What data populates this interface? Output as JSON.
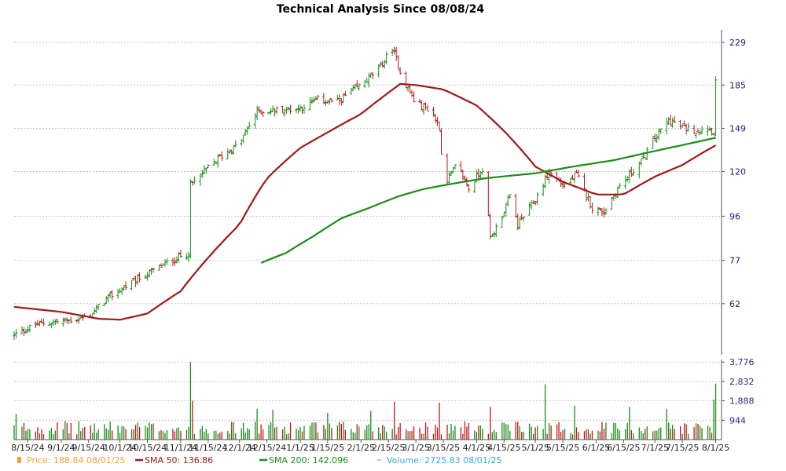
{
  "chart_data": {
    "type": "line",
    "title": "Technical Analysis Since 08/08/24",
    "price_axis": {
      "scale": "log",
      "range": [
        48,
        240
      ],
      "ticks": [
        229,
        185,
        149,
        120,
        96,
        77,
        62
      ],
      "tick_labels": [
        "229",
        "185",
        "149",
        "120",
        "96",
        "77",
        "62"
      ]
    },
    "volume_axis": {
      "range": [
        0,
        3900
      ],
      "ticks": [
        3776,
        2832,
        1888,
        944
      ],
      "tick_labels": [
        "3,776",
        "2,832",
        "1,888",
        "944"
      ]
    },
    "x_axis": {
      "start": "2024-08-08",
      "end": "2025-08-04",
      "tick_dates": [
        "2024-08-15",
        "2024-09-01",
        "2024-09-15",
        "2024-10-01",
        "2024-10-15",
        "2024-11-01",
        "2024-11-15",
        "2024-12-01",
        "2024-12-15",
        "2025-01-01",
        "2025-01-15",
        "2025-02-01",
        "2025-02-15",
        "2025-03-01",
        "2025-03-15",
        "2025-04-01",
        "2025-04-15",
        "2025-05-01",
        "2025-05-15",
        "2025-06-01",
        "2025-06-15",
        "2025-07-01",
        "2025-07-15",
        "2025-08-01"
      ],
      "tick_labels": [
        "8/15/24",
        "9/1/24",
        "9/15/24",
        "10/1/24",
        "10/15/24",
        "11/1/24",
        "11/15/24",
        "12/1/24",
        "12/15/24",
        "1/1/25",
        "1/15/25",
        "2/1/25",
        "2/15/25",
        "3/1/25",
        "3/15/25",
        "4/1/25",
        "4/15/25",
        "5/1/25",
        "5/15/25",
        "6/1/25",
        "6/15/25",
        "7/1/25",
        "7/15/25",
        "8/1/25"
      ]
    },
    "grid": true,
    "price_anchors": [
      [
        "2024-08-08",
        53
      ],
      [
        "2024-08-20",
        56
      ],
      [
        "2024-09-05",
        57
      ],
      [
        "2024-09-15",
        58
      ],
      [
        "2024-09-25",
        64
      ],
      [
        "2024-10-10",
        70
      ],
      [
        "2024-10-25",
        76
      ],
      [
        "2024-11-05",
        80
      ],
      [
        "2024-11-06",
        112
      ],
      [
        "2024-11-20",
        128
      ],
      [
        "2024-12-01",
        138
      ],
      [
        "2024-12-10",
        162
      ],
      [
        "2024-12-20",
        163
      ],
      [
        "2025-01-01",
        165
      ],
      [
        "2025-01-10",
        172
      ],
      [
        "2025-01-20",
        170
      ],
      [
        "2025-02-01",
        185
      ],
      [
        "2025-02-10",
        200
      ],
      [
        "2025-02-17",
        222
      ],
      [
        "2025-02-22",
        192
      ],
      [
        "2025-03-01",
        168
      ],
      [
        "2025-03-08",
        164
      ],
      [
        "2025-03-13",
        150
      ],
      [
        "2025-03-15",
        112
      ],
      [
        "2025-03-22",
        124
      ],
      [
        "2025-03-28",
        110
      ],
      [
        "2025-04-04",
        122
      ],
      [
        "2025-04-08",
        86
      ],
      [
        "2025-04-12",
        92
      ],
      [
        "2025-04-18",
        106
      ],
      [
        "2025-04-22",
        92
      ],
      [
        "2025-05-01",
        104
      ],
      [
        "2025-05-08",
        120
      ],
      [
        "2025-05-15",
        112
      ],
      [
        "2025-05-22",
        118
      ],
      [
        "2025-05-30",
        100
      ],
      [
        "2025-06-05",
        98
      ],
      [
        "2025-06-12",
        110
      ],
      [
        "2025-06-18",
        118
      ],
      [
        "2025-06-25",
        128
      ],
      [
        "2025-07-01",
        142
      ],
      [
        "2025-07-08",
        155
      ],
      [
        "2025-07-15",
        150
      ],
      [
        "2025-07-22",
        147
      ],
      [
        "2025-07-28",
        150
      ],
      [
        "2025-07-31",
        146
      ],
      [
        "2025-08-01",
        188.84
      ]
    ],
    "sma50_anchors": [
      [
        "2024-08-08",
        61
      ],
      [
        "2024-09-01",
        59.5
      ],
      [
        "2024-09-20",
        57.5
      ],
      [
        "2024-10-01",
        57.2
      ],
      [
        "2024-10-15",
        59
      ],
      [
        "2024-11-01",
        66
      ],
      [
        "2024-11-15",
        78
      ],
      [
        "2024-12-01",
        92
      ],
      [
        "2024-12-15",
        116
      ],
      [
        "2025-01-01",
        135
      ],
      [
        "2025-01-15",
        146
      ],
      [
        "2025-02-01",
        160
      ],
      [
        "2025-02-15",
        178
      ],
      [
        "2025-02-21",
        186
      ],
      [
        "2025-03-01",
        185
      ],
      [
        "2025-03-15",
        181
      ],
      [
        "2025-04-01",
        167
      ],
      [
        "2025-04-15",
        147
      ],
      [
        "2025-05-01",
        123
      ],
      [
        "2025-05-15",
        114
      ],
      [
        "2025-06-01",
        107
      ],
      [
        "2025-06-15",
        107
      ],
      [
        "2025-07-01",
        117
      ],
      [
        "2025-07-15",
        124
      ],
      [
        "2025-08-01",
        136.86
      ]
    ],
    "sma200_anchors": [
      [
        "2024-12-12",
        76
      ],
      [
        "2024-12-25",
        80
      ],
      [
        "2025-01-08",
        87
      ],
      [
        "2025-01-22",
        95
      ],
      [
        "2025-02-05",
        100
      ],
      [
        "2025-02-20",
        106
      ],
      [
        "2025-03-05",
        110
      ],
      [
        "2025-03-20",
        113
      ],
      [
        "2025-04-05",
        116
      ],
      [
        "2025-05-01",
        119
      ],
      [
        "2025-05-20",
        123
      ],
      [
        "2025-06-10",
        127
      ],
      [
        "2025-07-01",
        133
      ],
      [
        "2025-07-15",
        137
      ],
      [
        "2025-08-01",
        142.096
      ]
    ],
    "volume_spikes": [
      [
        "2024-08-09",
        1250
      ],
      [
        "2024-11-06",
        3776
      ],
      [
        "2024-11-07",
        1900
      ],
      [
        "2024-12-10",
        1500
      ],
      [
        "2024-12-18",
        1450
      ],
      [
        "2025-01-15",
        1300
      ],
      [
        "2025-02-06",
        1400
      ],
      [
        "2025-02-18",
        1850
      ],
      [
        "2025-03-13",
        1800
      ],
      [
        "2025-03-15",
        1650
      ],
      [
        "2025-04-08",
        1600
      ],
      [
        "2025-05-06",
        2700
      ],
      [
        "2025-05-21",
        1650
      ],
      [
        "2025-06-18",
        1600
      ],
      [
        "2025-07-07",
        1500
      ],
      [
        "2025-07-31",
        1950
      ],
      [
        "2025-08-01",
        2725.83
      ]
    ],
    "legend": [
      {
        "label": "Price: 188.84  08/01/25",
        "color": "#f0a33a"
      },
      {
        "label": "SMA 50: 136.86",
        "color": "#a01818"
      },
      {
        "label": "SMA 200: 142.096",
        "color": "#1a8c1a"
      },
      {
        "label": "Volume: 2725.83  08/01/25",
        "color": "#3aa8e6"
      }
    ],
    "colors": {
      "up": "#1a8c1a",
      "down": "#c01818",
      "sma50": "#a01818",
      "sma200": "#1a8c1a",
      "volume_up": "#1a8c1a",
      "volume_down": "#c01818",
      "grid": "#bbbbbb"
    }
  }
}
